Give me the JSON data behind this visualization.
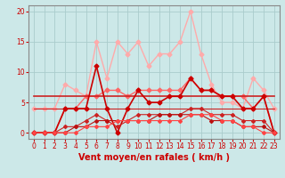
{
  "x": [
    0,
    1,
    2,
    3,
    4,
    5,
    6,
    7,
    8,
    9,
    10,
    11,
    12,
    13,
    14,
    15,
    16,
    17,
    18,
    19,
    20,
    21,
    22,
    23
  ],
  "series": [
    {
      "name": "light_pink_line",
      "color": "#ffaaaa",
      "linewidth": 1.0,
      "markersize": 2.5,
      "y": [
        4,
        4,
        4,
        8,
        7,
        6,
        15,
        9,
        15,
        13,
        15,
        11,
        13,
        13,
        15,
        20,
        13,
        8,
        5,
        5,
        4,
        9,
        7,
        4
      ]
    },
    {
      "name": "medium_pink_line",
      "color": "#ff6666",
      "linewidth": 1.0,
      "markersize": 2.5,
      "y": [
        0,
        0,
        0,
        4,
        4,
        6,
        6,
        7,
        7,
        6,
        7,
        7,
        7,
        7,
        7,
        9,
        7,
        7,
        6,
        6,
        6,
        4,
        6,
        0
      ]
    },
    {
      "name": "red_line_flat",
      "color": "#cc2222",
      "linewidth": 1.2,
      "markersize": 0,
      "y": [
        6,
        6,
        6,
        6,
        6,
        6,
        6,
        6,
        6,
        6,
        6,
        6,
        6,
        6,
        6,
        6,
        6,
        6,
        6,
        6,
        6,
        6,
        6,
        6
      ]
    },
    {
      "name": "red_line_flat2",
      "color": "#cc2222",
      "linewidth": 0.8,
      "markersize": 0,
      "y": [
        4,
        4,
        4,
        4,
        4,
        4,
        4,
        4,
        4,
        4,
        4,
        4,
        4,
        4,
        4,
        4,
        4,
        4,
        4,
        4,
        4,
        4,
        4,
        4
      ]
    },
    {
      "name": "dark_red_spiky",
      "color": "#cc0000",
      "linewidth": 1.2,
      "markersize": 2.5,
      "y": [
        0,
        0,
        0,
        4,
        4,
        4,
        11,
        4,
        0,
        4,
        7,
        5,
        5,
        6,
        6,
        9,
        7,
        7,
        6,
        6,
        4,
        4,
        6,
        0
      ]
    },
    {
      "name": "lower_red1",
      "color": "#cc2222",
      "linewidth": 0.8,
      "markersize": 2.0,
      "y": [
        0,
        0,
        0,
        1,
        1,
        2,
        3,
        2,
        1,
        2,
        3,
        3,
        3,
        3,
        3,
        4,
        4,
        3,
        3,
        3,
        2,
        2,
        2,
        0
      ]
    },
    {
      "name": "lower_red2",
      "color": "#bb1111",
      "linewidth": 0.8,
      "markersize": 2.0,
      "y": [
        0,
        0,
        0,
        0,
        1,
        1,
        2,
        2,
        2,
        2,
        2,
        2,
        3,
        3,
        3,
        3,
        3,
        2,
        2,
        2,
        1,
        1,
        1,
        0
      ]
    },
    {
      "name": "lower_red3",
      "color": "#ff4444",
      "linewidth": 0.8,
      "markersize": 2.0,
      "y": [
        0,
        0,
        0,
        0,
        0,
        1,
        1,
        1,
        2,
        2,
        2,
        2,
        2,
        2,
        2,
        3,
        3,
        3,
        2,
        2,
        1,
        1,
        0,
        0
      ]
    }
  ],
  "xlabel": "Vent moyen/en rafales ( km/h )",
  "xlim": [
    -0.5,
    23.5
  ],
  "ylim": [
    -1,
    21
  ],
  "yticks": [
    0,
    5,
    10,
    15,
    20
  ],
  "xticks": [
    0,
    1,
    2,
    3,
    4,
    5,
    6,
    7,
    8,
    9,
    10,
    11,
    12,
    13,
    14,
    15,
    16,
    17,
    18,
    19,
    20,
    21,
    22,
    23
  ],
  "grid_color": "#aacccc",
  "bg_color": "#cce8e8",
  "text_color": "#cc0000",
  "xlabel_fontsize": 7,
  "tick_fontsize": 5.5,
  "spine_color": "#888888"
}
